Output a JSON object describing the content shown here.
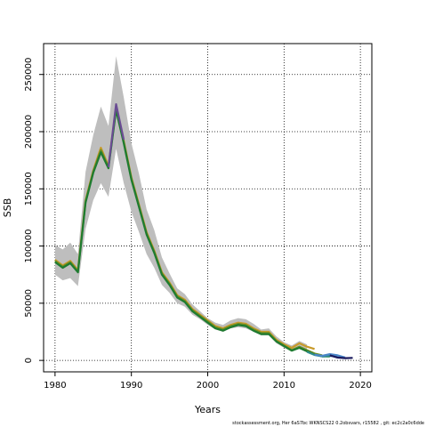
{
  "chart_data": {
    "type": "line",
    "title": "",
    "xlabel": "Years",
    "ylabel": "SSB",
    "xlim": [
      1978.5,
      2021.5
    ],
    "ylim": [
      -10000,
      277000
    ],
    "xticks": [
      1980,
      1990,
      2000,
      2010,
      2020
    ],
    "yticks": [
      0,
      50000,
      100000,
      150000,
      200000,
      250000
    ],
    "grid": true,
    "band_color": "#bebebe",
    "ci_band": {
      "x": [
        1980,
        1981,
        1982,
        1983,
        1984,
        1985,
        1986,
        1987,
        1988,
        1989,
        1990,
        1991,
        1992,
        1993,
        1994,
        1995,
        1996,
        1997,
        1998,
        1999,
        2000,
        2001,
        2002,
        2003,
        2004,
        2005,
        2006,
        2007,
        2008,
        2009,
        2010,
        2011,
        2012,
        2013
      ],
      "lower": [
        75000,
        70000,
        72000,
        65000,
        115000,
        140000,
        155000,
        143000,
        185000,
        155000,
        130000,
        112000,
        93000,
        81000,
        66000,
        59000,
        50000,
        47000,
        40000,
        36000,
        31000,
        27000,
        25000,
        28000,
        29000,
        28000,
        25000,
        22000,
        22000,
        15000,
        11000,
        8000,
        10000,
        7000
      ],
      "upper": [
        101000,
        97000,
        103000,
        93000,
        165000,
        197000,
        222000,
        205000,
        266000,
        230000,
        190000,
        163000,
        132000,
        114000,
        90000,
        76000,
        63000,
        58000,
        49000,
        43000,
        37000,
        33000,
        31000,
        35000,
        37000,
        36000,
        32000,
        27000,
        28000,
        21000,
        16000,
        13000,
        17000,
        14000
      ]
    },
    "series": [
      {
        "color": "#c89a2a",
        "x": [
          1980,
          1981,
          1982,
          1983,
          1984,
          1985,
          1986,
          1987,
          1988,
          1989,
          1990,
          1991,
          1992,
          1993,
          1994,
          1995,
          1996,
          1997,
          1998,
          1999,
          2000,
          2001,
          2002,
          2003,
          2004,
          2005,
          2006,
          2007,
          2008,
          2009,
          2010,
          2011,
          2012,
          2013,
          2014
        ],
        "values": [
          88000,
          83000,
          87000,
          79000,
          140000,
          166000,
          186000,
          170000,
          221000,
          192000,
          160000,
          136000,
          112000,
          96000,
          77000,
          68000,
          57000,
          53000,
          45000,
          40000,
          35000,
          30000,
          28000,
          31000,
          33000,
          32000,
          28000,
          25000,
          25000,
          18000,
          14000,
          11000,
          15000,
          12000,
          10000
        ]
      },
      {
        "color": "#6b8e23",
        "x": [
          1980,
          1981,
          1982,
          1983,
          1984,
          1985,
          1986,
          1987,
          1988,
          1989,
          1990,
          1991,
          1992,
          1993,
          1994,
          1995,
          1996,
          1997,
          1998,
          1999,
          2000,
          2001,
          2002,
          2003,
          2004,
          2005,
          2006,
          2007,
          2008,
          2009,
          2010,
          2011,
          2012,
          2013,
          2014,
          2015
        ],
        "values": [
          87000,
          82000,
          86000,
          78000,
          139000,
          165000,
          184000,
          169000,
          220000,
          191000,
          159000,
          135000,
          111000,
          95000,
          76000,
          67000,
          56000,
          52000,
          44000,
          39000,
          34000,
          29000,
          27000,
          30000,
          32000,
          31000,
          27000,
          24000,
          24000,
          17000,
          13000,
          9000,
          12000,
          9000,
          6000,
          4500
        ]
      },
      {
        "color": "#1e7b30",
        "x": [
          1980,
          1981,
          1982,
          1983,
          1984,
          1985,
          1986,
          1987,
          1988,
          1989,
          1990,
          1991,
          1992,
          1993,
          1994,
          1995,
          1996,
          1997,
          1998,
          1999,
          2000,
          2001,
          2002,
          2003,
          2004,
          2005,
          2006,
          2007,
          2008,
          2009,
          2010,
          2011,
          2012,
          2013,
          2014,
          2015,
          2016
        ],
        "values": [
          86000,
          81000,
          85000,
          77000,
          138000,
          164000,
          182000,
          168000,
          219000,
          190000,
          158000,
          134000,
          110000,
          94000,
          75000,
          66000,
          55000,
          51000,
          43000,
          38000,
          33000,
          28000,
          26000,
          29000,
          31000,
          30000,
          26000,
          23000,
          23000,
          16500,
          12500,
          8500,
          11000,
          8000,
          5000,
          3500,
          3500
        ]
      },
      {
        "color": "#2e8b8b",
        "x": [
          2013,
          2014,
          2015,
          2016,
          2017
        ],
        "values": [
          7500,
          4800,
          3500,
          4000,
          3800
        ]
      },
      {
        "color": "#4a86c8",
        "x": [
          2014,
          2015,
          2016,
          2017,
          2018
        ],
        "values": [
          5000,
          4000,
          5500,
          4500,
          2500
        ]
      },
      {
        "color": "#1a1a5e",
        "x": [
          2016,
          2017,
          2018,
          2019
        ],
        "values": [
          4500,
          2500,
          2000,
          2200
        ]
      },
      {
        "color": "#6a4c93",
        "x": [
          1987,
          1988,
          1989
        ],
        "values": [
          169000,
          224000,
          193000
        ]
      }
    ]
  },
  "footnote": "stockassessment.org,  Her  6aS7bc  WKNSCS22  0.2obsvars,  r15582 ,  git:  ec2c2a0c6dde"
}
